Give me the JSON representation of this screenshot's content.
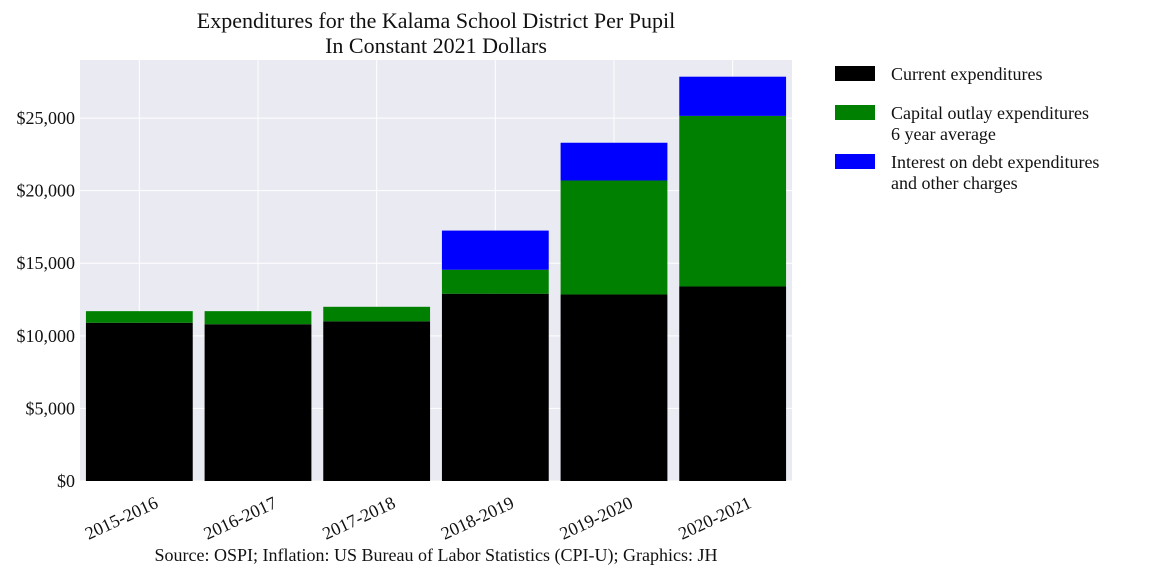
{
  "chart_data": {
    "type": "bar",
    "stacked": true,
    "title": "Expenditures for the Kalama School District Per Pupil",
    "subtitle": "In Constant 2021 Dollars",
    "xlabel": "",
    "ylabel": "",
    "categories": [
      "2015-2016",
      "2016-2017",
      "2017-2018",
      "2018-2019",
      "2019-2020",
      "2020-2021"
    ],
    "ylim": [
      0,
      29000
    ],
    "yticks": [
      0,
      5000,
      10000,
      15000,
      20000,
      25000
    ],
    "ytick_labels": [
      "$0",
      "$5,000",
      "$10,000",
      "$15,000",
      "$20,000",
      "$25,000"
    ],
    "grid": true,
    "legend_position": "outside-right-top",
    "series": [
      {
        "name": "Current expenditures",
        "color": "#000000",
        "values": [
          10900,
          10800,
          11000,
          12900,
          12850,
          13400
        ]
      },
      {
        "name": "Capital outlay expenditures\n6 year average",
        "color": "#008000",
        "values": [
          800,
          900,
          1000,
          1650,
          7850,
          11750
        ]
      },
      {
        "name": "Interest on debt expenditures\nand other charges",
        "color": "#0000ff",
        "values": [
          0,
          0,
          0,
          2700,
          2600,
          2700
        ]
      }
    ],
    "source": "Source: OSPI; Inflation: US Bureau of Labor Statistics (CPI-U); Graphics: JH"
  },
  "colors": {
    "plot_background": "#eaeaf2",
    "grid": "#ffffff"
  }
}
